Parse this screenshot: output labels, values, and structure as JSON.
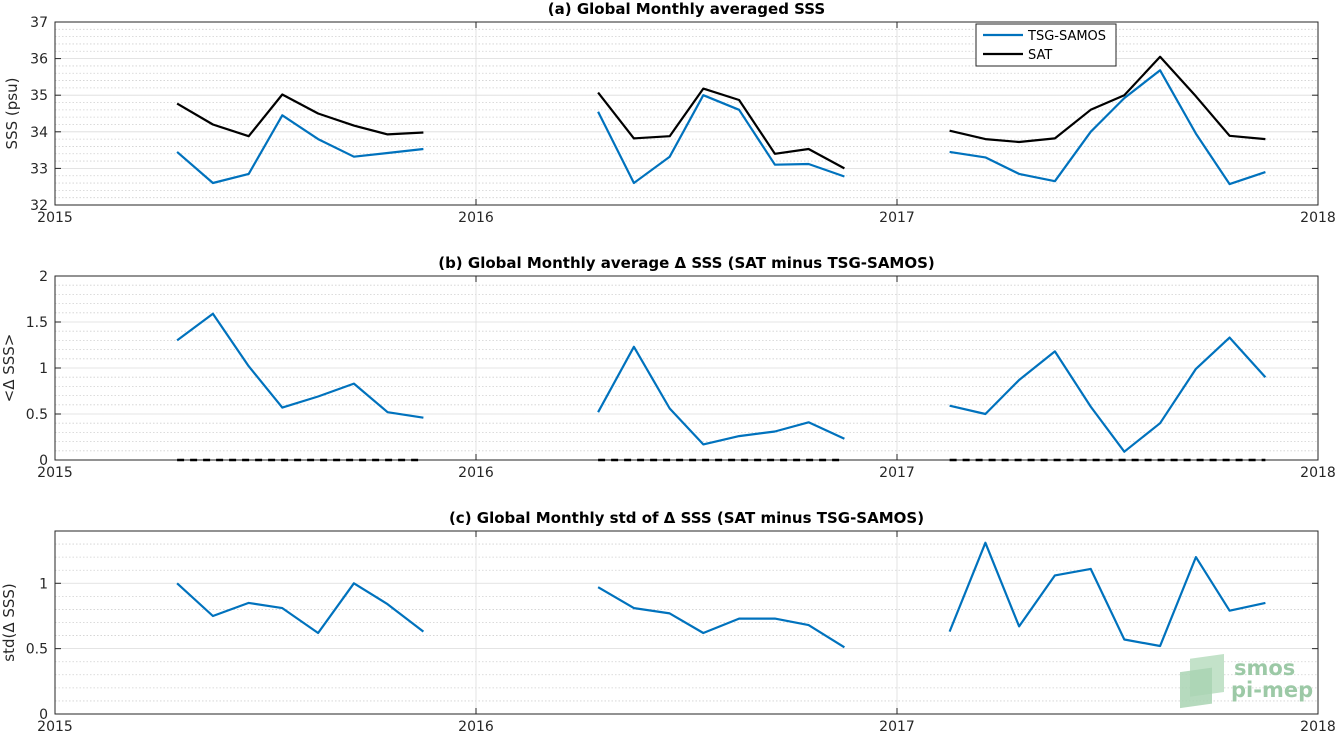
{
  "chart_data": [
    {
      "type": "line",
      "title": "(a) Global Monthly averaged SSS",
      "ylabel": "SSS (psu)",
      "xlim": [
        2015,
        2018
      ],
      "ylim": [
        32,
        37
      ],
      "xticks": [
        2015,
        2016,
        2017,
        2018
      ],
      "xtick_labels": [
        "2015",
        "2016",
        "2017",
        "2018"
      ],
      "yticks": [
        32,
        33,
        34,
        35,
        36,
        37
      ],
      "ytick_labels": [
        "32",
        "33",
        "34",
        "35",
        "36",
        "37"
      ],
      "grid": true,
      "minor_grid": true,
      "legend_position": "top-right",
      "series": [
        {
          "name": "TSG-SAMOS",
          "color": "#0072bd",
          "segments": [
            {
              "x": [
                2015.29,
                2015.375,
                2015.46,
                2015.54,
                2015.625,
                2015.71,
                2015.79,
                2015.875
              ],
              "y": [
                33.45,
                32.6,
                32.85,
                34.45,
                33.8,
                33.32,
                33.42,
                33.53
              ]
            },
            {
              "x": [
                2016.29,
                2016.375,
                2016.46,
                2016.54,
                2016.625,
                2016.71,
                2016.79,
                2016.875
              ],
              "y": [
                34.55,
                32.6,
                33.32,
                35.0,
                34.6,
                33.1,
                33.12,
                32.78
              ]
            },
            {
              "x": [
                2017.125,
                2017.21,
                2017.29,
                2017.375,
                2017.46,
                2017.54,
                2017.625,
                2017.71,
                2017.79,
                2017.875
              ],
              "y": [
                33.45,
                33.3,
                32.85,
                32.65,
                34.0,
                34.92,
                35.68,
                33.95,
                32.57,
                32.9
              ]
            }
          ]
        },
        {
          "name": "SAT",
          "color": "#000000",
          "segments": [
            {
              "x": [
                2015.29,
                2015.375,
                2015.46,
                2015.54,
                2015.625,
                2015.71,
                2015.79,
                2015.875
              ],
              "y": [
                34.77,
                34.2,
                33.88,
                35.02,
                34.5,
                34.17,
                33.93,
                33.98
              ]
            },
            {
              "x": [
                2016.29,
                2016.375,
                2016.46,
                2016.54,
                2016.625,
                2016.71,
                2016.79,
                2016.875
              ],
              "y": [
                35.07,
                33.82,
                33.88,
                35.18,
                34.87,
                33.4,
                33.53,
                33.0
              ]
            },
            {
              "x": [
                2017.125,
                2017.21,
                2017.29,
                2017.375,
                2017.46,
                2017.54,
                2017.625,
                2017.71,
                2017.79,
                2017.875
              ],
              "y": [
                34.03,
                33.8,
                33.72,
                33.82,
                34.6,
                35.0,
                36.05,
                34.97,
                33.89,
                33.8
              ]
            }
          ]
        }
      ]
    },
    {
      "type": "line",
      "title": "(b) Global Monthly average Δ SSS (SAT minus TSG-SAMOS)",
      "ylabel": "<Δ SSS>",
      "xlim": [
        2015,
        2018
      ],
      "ylim": [
        0,
        2
      ],
      "xticks": [
        2015,
        2016,
        2017,
        2018
      ],
      "xtick_labels": [
        "2015",
        "2016",
        "2017",
        "2018"
      ],
      "yticks": [
        0,
        0.5,
        1,
        1.5,
        2
      ],
      "ytick_labels": [
        "0",
        "0.5",
        "1",
        "1.5",
        "2"
      ],
      "grid": true,
      "minor_grid": true,
      "series": [
        {
          "color": "#0072bd",
          "segments": [
            {
              "x": [
                2015.29,
                2015.375,
                2015.46,
                2015.54,
                2015.625,
                2015.71,
                2015.79,
                2015.875
              ],
              "y": [
                1.3,
                1.59,
                1.02,
                0.57,
                0.69,
                0.83,
                0.52,
                0.46
              ]
            },
            {
              "x": [
                2016.29,
                2016.375,
                2016.46,
                2016.54,
                2016.625,
                2016.71,
                2016.79,
                2016.875
              ],
              "y": [
                0.52,
                1.23,
                0.56,
                0.17,
                0.26,
                0.31,
                0.41,
                0.23
              ]
            },
            {
              "x": [
                2017.125,
                2017.21,
                2017.29,
                2017.375,
                2017.46,
                2017.54,
                2017.625,
                2017.71,
                2017.79,
                2017.875
              ],
              "y": [
                0.59,
                0.5,
                0.87,
                1.18,
                0.58,
                0.09,
                0.4,
                0.99,
                1.33,
                0.9
              ]
            }
          ]
        },
        {
          "color": "#000000",
          "dashed": true,
          "segments": [
            {
              "x": [
                2015.29,
                2015.875
              ],
              "y": [
                0,
                0
              ]
            },
            {
              "x": [
                2016.29,
                2016.875
              ],
              "y": [
                0,
                0
              ]
            },
            {
              "x": [
                2017.125,
                2017.875
              ],
              "y": [
                0,
                0
              ]
            }
          ]
        }
      ]
    },
    {
      "type": "line",
      "title": "(c) Global Monthly std of Δ SSS (SAT minus TSG-SAMOS)",
      "ylabel": "std(Δ SSS)",
      "xlim": [
        2015,
        2018
      ],
      "ylim": [
        0,
        1.4
      ],
      "xticks": [
        2015,
        2016,
        2017,
        2018
      ],
      "xtick_labels": [
        "2015",
        "2016",
        "2017",
        "2018"
      ],
      "yticks": [
        0,
        0.5,
        1
      ],
      "ytick_labels": [
        "0",
        "0.5",
        "1"
      ],
      "grid": true,
      "minor_grid": true,
      "series": [
        {
          "color": "#0072bd",
          "segments": [
            {
              "x": [
                2015.29,
                2015.375,
                2015.46,
                2015.54,
                2015.625,
                2015.71,
                2015.79,
                2015.875
              ],
              "y": [
                1.0,
                0.75,
                0.85,
                0.81,
                0.62,
                1.0,
                0.84,
                0.63
              ]
            },
            {
              "x": [
                2016.29,
                2016.375,
                2016.46,
                2016.54,
                2016.625,
                2016.71,
                2016.79,
                2016.875
              ],
              "y": [
                0.97,
                0.81,
                0.77,
                0.62,
                0.73,
                0.73,
                0.68,
                0.51
              ]
            },
            {
              "x": [
                2017.125,
                2017.21,
                2017.29,
                2017.375,
                2017.46,
                2017.54,
                2017.625,
                2017.71,
                2017.79,
                2017.875
              ],
              "y": [
                0.63,
                1.31,
                0.67,
                1.06,
                1.11,
                0.57,
                0.52,
                1.2,
                0.79,
                0.85
              ]
            }
          ]
        }
      ]
    }
  ],
  "logo": {
    "line1": "smos",
    "line2": "pi-mep"
  }
}
